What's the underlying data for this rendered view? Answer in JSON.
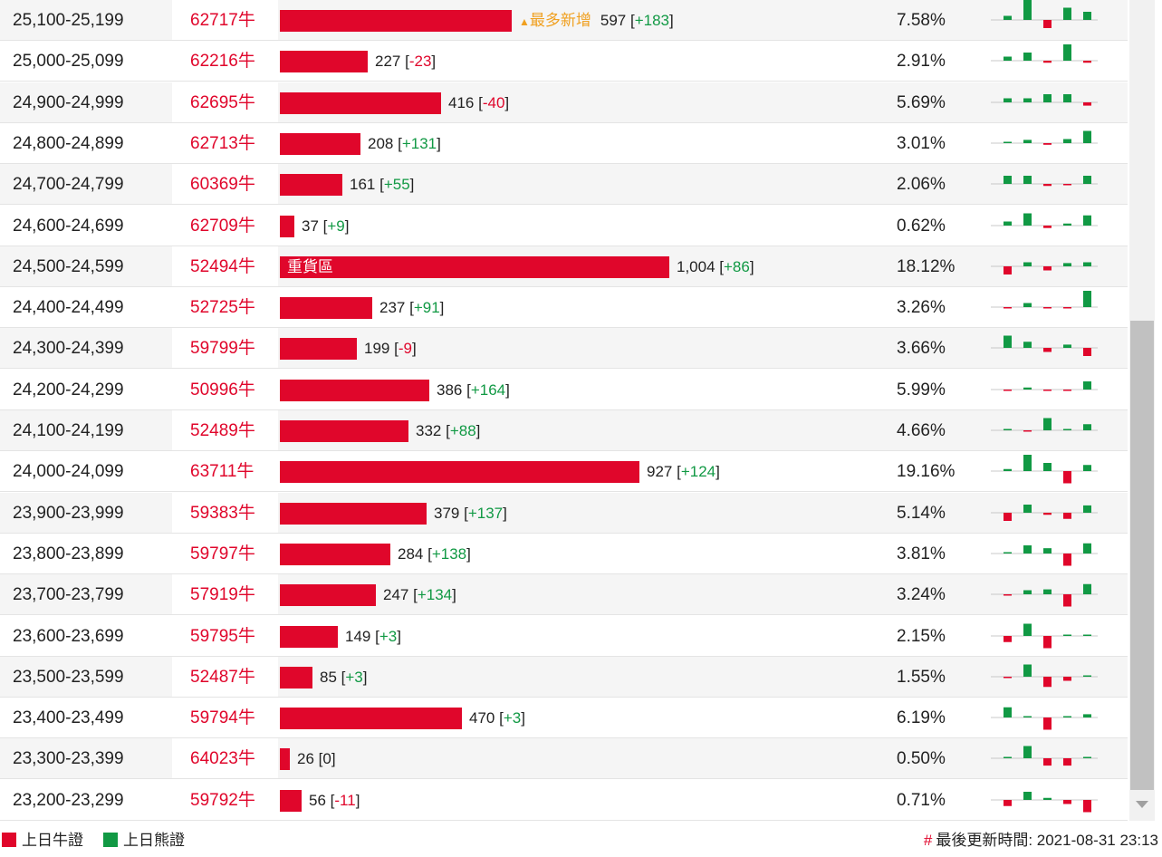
{
  "colors": {
    "bull": "#e0062b",
    "bear": "#119944",
    "new_tag": "#f0a020"
  },
  "bar_scale_max_count": 1004,
  "rows": [
    {
      "range": "25,100-25,199",
      "code": "62717牛",
      "count": "597",
      "chg": "+183",
      "pct": "7.58%",
      "count_value": 597,
      "new_tag": "最多新增",
      "spark": [
        1,
        5,
        -2,
        3,
        2
      ]
    },
    {
      "range": "25,000-25,099",
      "code": "62216牛",
      "count": "227",
      "chg": "-23",
      "pct": "2.91%",
      "count_value": 227,
      "spark": [
        1,
        2,
        -0.5,
        4,
        -0.5
      ]
    },
    {
      "range": "24,900-24,999",
      "code": "62695牛",
      "count": "416",
      "chg": "-40",
      "pct": "5.69%",
      "count_value": 416,
      "spark": [
        1,
        1,
        2,
        2,
        -0.8
      ]
    },
    {
      "range": "24,800-24,899",
      "code": "62713牛",
      "count": "208",
      "chg": "+131",
      "pct": "3.01%",
      "count_value": 208,
      "spark": [
        0.3,
        0.8,
        -0.4,
        1,
        3
      ]
    },
    {
      "range": "24,700-24,799",
      "code": "60369牛",
      "count": "161",
      "chg": "+55",
      "pct": "2.06%",
      "count_value": 161,
      "spark": [
        2,
        2,
        -0.5,
        -0.3,
        2
      ]
    },
    {
      "range": "24,600-24,699",
      "code": "62709牛",
      "count": "37",
      "chg": "+9",
      "pct": "0.62%",
      "count_value": 37,
      "spark": [
        1,
        3,
        -0.6,
        0.5,
        2.5
      ]
    },
    {
      "range": "24,500-24,599",
      "code": "52494牛",
      "count": "1,004",
      "chg": "+86",
      "pct": "18.12%",
      "count_value": 1004,
      "bar_label": "重貨區",
      "spark": [
        -2,
        1,
        -1,
        0.8,
        1
      ]
    },
    {
      "range": "24,400-24,499",
      "code": "52725牛",
      "count": "237",
      "chg": "+91",
      "pct": "3.26%",
      "count_value": 237,
      "spark": [
        -0.3,
        1,
        -0.3,
        -0.2,
        4
      ]
    },
    {
      "range": "24,300-24,399",
      "code": "59799牛",
      "count": "199",
      "chg": "-9",
      "pct": "3.66%",
      "count_value": 199,
      "spark": [
        3,
        1.5,
        -1,
        0.8,
        -2
      ]
    },
    {
      "range": "24,200-24,299",
      "code": "50996牛",
      "count": "386",
      "chg": "+164",
      "pct": "5.99%",
      "count_value": 386,
      "spark": [
        -0.2,
        0.5,
        -0.2,
        -0.2,
        2
      ]
    },
    {
      "range": "24,100-24,199",
      "code": "52489牛",
      "count": "332",
      "chg": "+88",
      "pct": "4.66%",
      "count_value": 332,
      "spark": [
        0.2,
        -0.2,
        3,
        0.3,
        1.5
      ]
    },
    {
      "range": "24,000-24,099",
      "code": "63711牛",
      "count": "927",
      "chg": "+124",
      "pct": "19.16%",
      "count_value": 927,
      "spark": [
        0.5,
        4,
        2,
        -3,
        1.5
      ]
    },
    {
      "range": "23,900-23,999",
      "code": "59383牛",
      "count": "379",
      "chg": "+137",
      "pct": "5.14%",
      "count_value": 379,
      "spark": [
        -2,
        2,
        -0.5,
        -1.5,
        1.8
      ]
    },
    {
      "range": "23,800-23,899",
      "code": "59797牛",
      "count": "284",
      "chg": "+138",
      "pct": "3.81%",
      "count_value": 284,
      "spark": [
        0,
        2,
        1.3,
        -3,
        2.5
      ]
    },
    {
      "range": "23,700-23,799",
      "code": "57919牛",
      "count": "247",
      "chg": "+134",
      "pct": "3.24%",
      "count_value": 247,
      "spark": [
        -0.2,
        1,
        1.2,
        -3,
        2.5
      ]
    },
    {
      "range": "23,600-23,699",
      "code": "59795牛",
      "count": "149",
      "chg": "+3",
      "pct": "2.15%",
      "count_value": 149,
      "spark": [
        -1.5,
        3,
        -3,
        0,
        0.3
      ]
    },
    {
      "range": "23,500-23,599",
      "code": "52487牛",
      "count": "85",
      "chg": "+3",
      "pct": "1.55%",
      "count_value": 85,
      "spark": [
        -0.3,
        3,
        -2.5,
        -1,
        0.3
      ]
    },
    {
      "range": "23,400-23,499",
      "code": "59794牛",
      "count": "470",
      "chg": "+3",
      "pct": "6.19%",
      "count_value": 470,
      "spark": [
        2.5,
        0,
        -3,
        0,
        0.8
      ]
    },
    {
      "range": "23,300-23,399",
      "code": "64023牛",
      "count": "26",
      "chg": "0",
      "pct": "0.50%",
      "count_value": 26,
      "spark": [
        0,
        3,
        -1.8,
        -1.8,
        0
      ]
    },
    {
      "range": "23,200-23,299",
      "code": "59792牛",
      "count": "56",
      "chg": "-11",
      "pct": "0.71%",
      "count_value": 56,
      "spark": [
        -1.5,
        2,
        0.5,
        -1,
        -3
      ]
    }
  ],
  "legend": {
    "bull_label": "上日牛證",
    "bear_label": "上日熊證"
  },
  "footer": {
    "update_hash": "#",
    "update_label": "最後更新時間: 2021-08-31 23:13"
  }
}
